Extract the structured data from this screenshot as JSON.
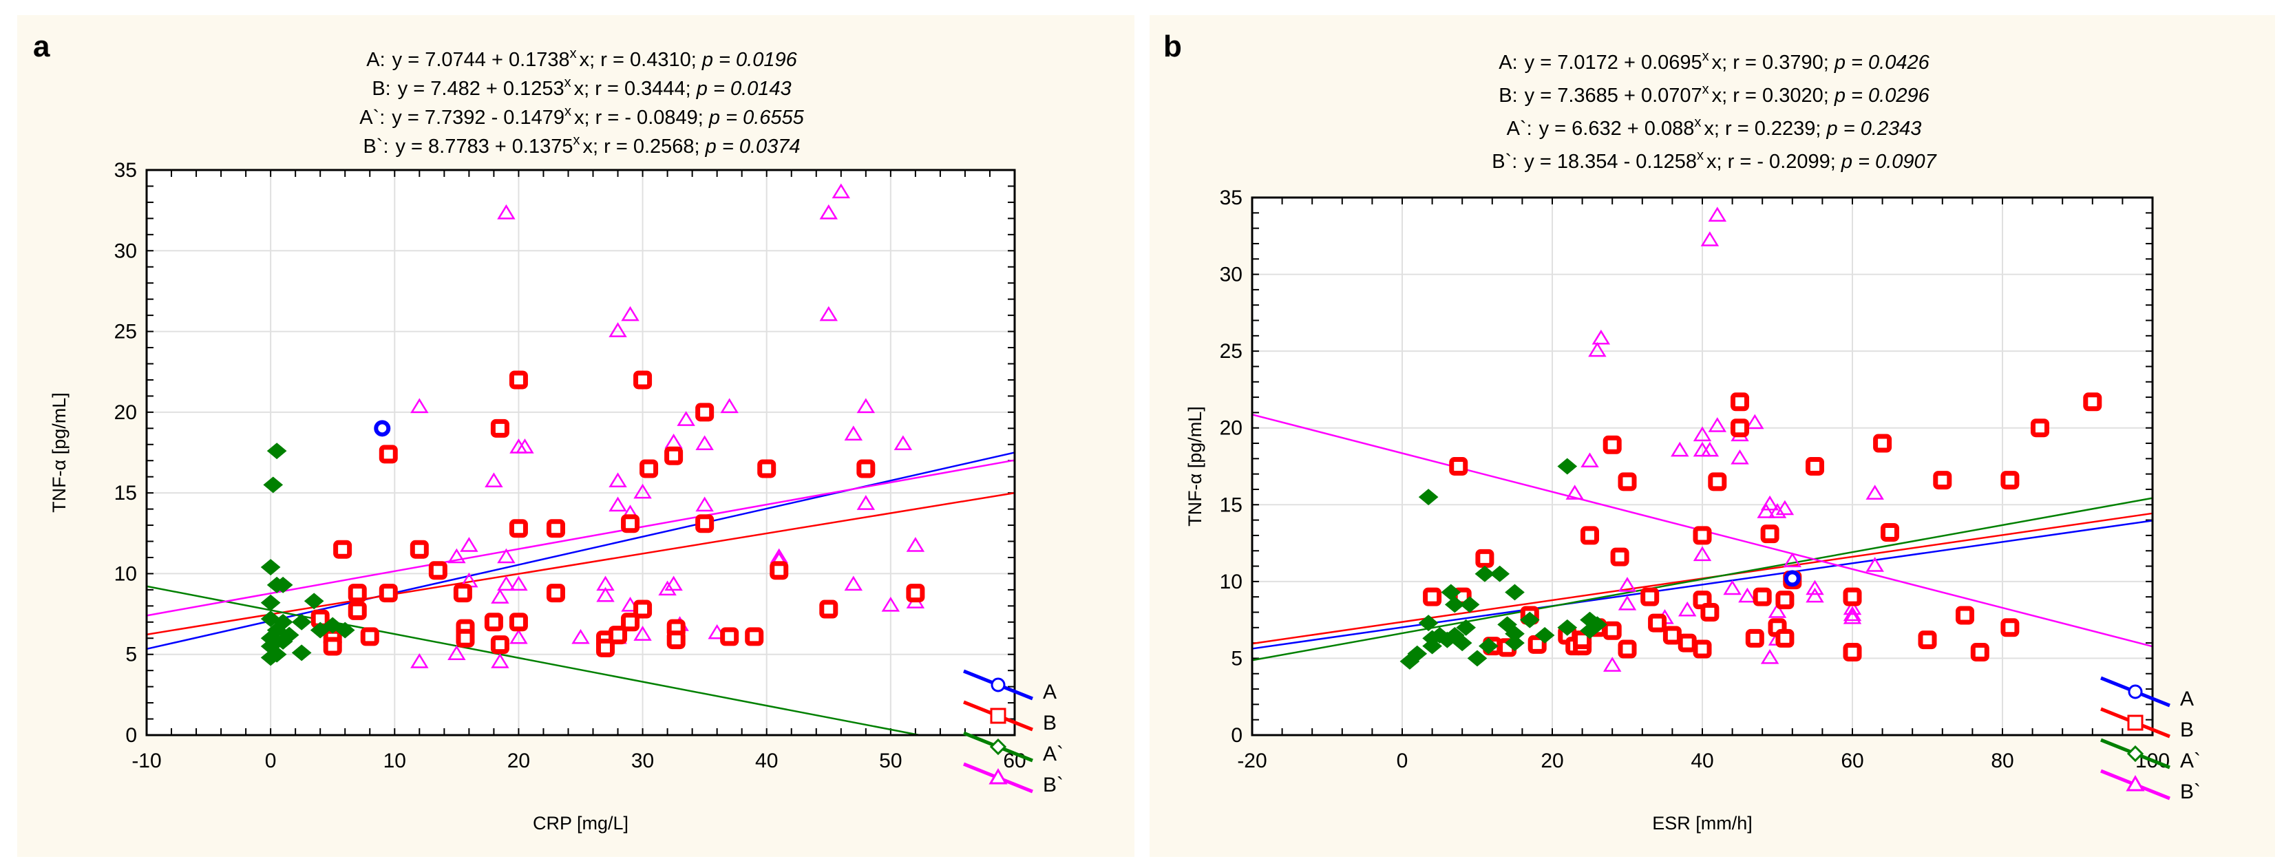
{
  "colors": {
    "A": "#0000ff",
    "B": "#ff0000",
    "A`": "#008000",
    "B`": "#ff00ff",
    "background": "#fdf9ee",
    "grid": "#e0e0e0"
  },
  "chart_data": [
    {
      "type": "scatter",
      "panel_label": "a",
      "xlabel": "CRP [mg/L]",
      "ylabel": "TNF-α [pg/mL]",
      "xlim": [
        -10,
        60
      ],
      "ylim": [
        0,
        35
      ],
      "xticks": [
        -10,
        0,
        10,
        20,
        30,
        40,
        50,
        60
      ],
      "yticks": [
        0,
        5,
        10,
        15,
        20,
        25,
        30,
        35
      ],
      "grid": true,
      "legend_position": "right-bottom",
      "equations": [
        {
          "series": "A",
          "label": "A:",
          "eq": "y = 7.0744 + 0.1738",
          "r": "r = 0.4310",
          "p": "p = 0.0196",
          "a": 7.0744,
          "b": 0.1738
        },
        {
          "series": "B",
          "label": "B:",
          "eq": "y = 7.482 + 0.1253",
          "r": "r = 0.3444",
          "p": "p = 0.0143",
          "a": 7.482,
          "b": 0.1253
        },
        {
          "series": "A`",
          "label": "A`:",
          "eq": "y = 7.7392 - 0.1479",
          "r": "r = - 0.0849",
          "p": "p = 0.6555",
          "a": 7.7392,
          "b": -0.1479
        },
        {
          "series": "B`",
          "label": "B`:",
          "eq": "y = 8.7783 + 0.1375",
          "r": "r = 0.2568",
          "p": "p = 0.0374",
          "a": 8.7783,
          "b": 0.1375
        }
      ],
      "series": [
        {
          "name": "A",
          "marker": "circle",
          "points": [
            [
              9,
              19
            ]
          ]
        },
        {
          "name": "A`",
          "marker": "diamond",
          "points": [
            [
              0.5,
              17.6
            ],
            [
              0.2,
              15.5
            ],
            [
              0,
              10.4
            ],
            [
              0.5,
              9.3
            ],
            [
              1,
              9.3
            ],
            [
              0,
              8.2
            ],
            [
              3.5,
              8.3
            ],
            [
              0,
              7.2
            ],
            [
              2.5,
              7
            ],
            [
              0.5,
              6.5
            ],
            [
              4,
              6.5
            ],
            [
              5,
              6.8
            ],
            [
              6,
              6.5
            ],
            [
              0,
              6
            ],
            [
              0.5,
              5.8
            ],
            [
              1,
              5.8
            ],
            [
              0,
              5.5
            ],
            [
              0.5,
              5
            ],
            [
              2.5,
              5.1
            ],
            [
              0,
              4.8
            ],
            [
              1.5,
              6.2
            ],
            [
              1,
              7
            ]
          ]
        },
        {
          "name": "B",
          "marker": "square",
          "points": [
            [
              5.8,
              11.5
            ],
            [
              9.5,
              17.4
            ],
            [
              20,
              22
            ],
            [
              30,
              22
            ],
            [
              35,
              20
            ],
            [
              48,
              16.5
            ],
            [
              20,
              12.8
            ],
            [
              23,
              12.8
            ],
            [
              12,
              11.5
            ],
            [
              13.5,
              10.2
            ],
            [
              15.5,
              8.8
            ],
            [
              23,
              8.8
            ],
            [
              7,
              8.8
            ],
            [
              9.5,
              8.8
            ],
            [
              30.5,
              16.5
            ],
            [
              32.5,
              17.3
            ],
            [
              40,
              16.5
            ],
            [
              41,
              10.2
            ],
            [
              29,
              13.1
            ],
            [
              35,
              13.1
            ],
            [
              18.5,
              19
            ],
            [
              4,
              7.2
            ],
            [
              5,
              6
            ],
            [
              5,
              5.5
            ],
            [
              7,
              7.7
            ],
            [
              8,
              6.1
            ],
            [
              15.7,
              6.6
            ],
            [
              15.7,
              6
            ],
            [
              18,
              7
            ],
            [
              20,
              7
            ],
            [
              18.5,
              5.6
            ],
            [
              27,
              5.9
            ],
            [
              27,
              5.4
            ],
            [
              28,
              6.2
            ],
            [
              29,
              7
            ],
            [
              30,
              7.8
            ],
            [
              32.7,
              6.6
            ],
            [
              32.7,
              5.9
            ],
            [
              37,
              6.1
            ],
            [
              39,
              6.1
            ],
            [
              45,
              7.8
            ],
            [
              52,
              8.8
            ]
          ]
        },
        {
          "name": "B`",
          "marker": "triangle",
          "points": [
            [
              19,
              32.3
            ],
            [
              46,
              33.6
            ],
            [
              45,
              32.3
            ],
            [
              28,
              25
            ],
            [
              29,
              26
            ],
            [
              45,
              26
            ],
            [
              12,
              20.3
            ],
            [
              20,
              17.8
            ],
            [
              20.5,
              17.8
            ],
            [
              18,
              15.7
            ],
            [
              28,
              15.7
            ],
            [
              28,
              14.2
            ],
            [
              29,
              13.7
            ],
            [
              30,
              15
            ],
            [
              32.5,
              18.1
            ],
            [
              33.5,
              19.5
            ],
            [
              35,
              18
            ],
            [
              35,
              14.2
            ],
            [
              37,
              20.3
            ],
            [
              47,
              18.6
            ],
            [
              48,
              20.3
            ],
            [
              48,
              14.3
            ],
            [
              51,
              18
            ],
            [
              16,
              11.7
            ],
            [
              15,
              11
            ],
            [
              16,
              9.5
            ],
            [
              19,
              9.3
            ],
            [
              20,
              9.3
            ],
            [
              18.5,
              8.5
            ],
            [
              19,
              11
            ],
            [
              27,
              8.6
            ],
            [
              27,
              9.3
            ],
            [
              29,
              8
            ],
            [
              32,
              9
            ],
            [
              32.5,
              9.3
            ],
            [
              41,
              11
            ],
            [
              41,
              10.8
            ],
            [
              47,
              9.3
            ],
            [
              52,
              11.7
            ],
            [
              52,
              8.2
            ],
            [
              50,
              8
            ],
            [
              12,
              4.5
            ],
            [
              15,
              5
            ],
            [
              18.5,
              4.5
            ],
            [
              25,
              6
            ],
            [
              30,
              6.2
            ],
            [
              33,
              6.8
            ],
            [
              36,
              6.3
            ],
            [
              28,
              6
            ],
            [
              20,
              6
            ]
          ]
        }
      ]
    },
    {
      "type": "scatter",
      "panel_label": "b",
      "xlabel": "ESR [mm/h]",
      "ylabel": "TNF-α [pg/mL]",
      "xlim": [
        -20,
        100
      ],
      "ylim": [
        0,
        35
      ],
      "xticks": [
        -20,
        0,
        20,
        40,
        60,
        80,
        100
      ],
      "yticks": [
        0,
        5,
        10,
        15,
        20,
        25,
        30,
        35
      ],
      "grid": true,
      "legend_position": "right-bottom",
      "equations": [
        {
          "series": "A",
          "label": "A:",
          "eq": "y = 7.0172 + 0.0695",
          "r": "r = 0.3790",
          "p": "p = 0.0426",
          "a": 7.0172,
          "b": 0.0695
        },
        {
          "series": "B",
          "label": "B:",
          "eq": "y = 7.3685 + 0.0707",
          "r": "r = 0.3020",
          "p": "p = 0.0296",
          "a": 7.3685,
          "b": 0.0707
        },
        {
          "series": "A`",
          "label": "A`:",
          "eq": "y = 6.632 + 0.088",
          "r": "r = 0.2239",
          "p": "p = 0.2343",
          "a": 6.632,
          "b": 0.088
        },
        {
          "series": "B`",
          "label": "B`:",
          "eq": "y = 18.354 - 0.1258",
          "r": "r = - 0.2099",
          "p": "p = 0.0907",
          "a": 18.354,
          "b": -0.1258
        }
      ],
      "series": [
        {
          "name": "A",
          "marker": "circle",
          "points": [
            [
              52,
              10.2
            ]
          ]
        },
        {
          "name": "A`",
          "marker": "diamond",
          "points": [
            [
              1,
              4.8
            ],
            [
              2,
              5.3
            ],
            [
              3.5,
              15.5
            ],
            [
              3.5,
              7.3
            ],
            [
              4,
              6.3
            ],
            [
              4,
              5.8
            ],
            [
              5,
              6.5
            ],
            [
              6,
              6.2
            ],
            [
              6.5,
              9.3
            ],
            [
              7,
              8.5
            ],
            [
              7,
              6.5
            ],
            [
              8,
              6
            ],
            [
              8.5,
              7
            ],
            [
              9,
              8.5
            ],
            [
              10,
              5
            ],
            [
              11,
              10.5
            ],
            [
              11.5,
              5.8
            ],
            [
              13,
              10.5
            ],
            [
              14,
              7.2
            ],
            [
              15,
              6.6
            ],
            [
              15,
              6
            ],
            [
              15,
              9.3
            ],
            [
              17,
              7.5
            ],
            [
              19,
              6.5
            ],
            [
              22,
              17.5
            ],
            [
              22,
              7
            ],
            [
              25,
              7.5
            ],
            [
              25,
              6.8
            ],
            [
              26,
              7.2
            ]
          ]
        },
        {
          "name": "B",
          "marker": "square",
          "points": [
            [
              7.5,
              17.5
            ],
            [
              4,
              9
            ],
            [
              8,
              9
            ],
            [
              11,
              11.5
            ],
            [
              12,
              5.8
            ],
            [
              14,
              5.7
            ],
            [
              17,
              7.8
            ],
            [
              18,
              5.9
            ],
            [
              22,
              6.5
            ],
            [
              23,
              5.8
            ],
            [
              24,
              5.8
            ],
            [
              24,
              6.2
            ],
            [
              25,
              13
            ],
            [
              26,
              7
            ],
            [
              28,
              18.9
            ],
            [
              28,
              6.8
            ],
            [
              29,
              11.6
            ],
            [
              30,
              16.5
            ],
            [
              30,
              5.6
            ],
            [
              33,
              9
            ],
            [
              34,
              7.3
            ],
            [
              36,
              6.5
            ],
            [
              38,
              6
            ],
            [
              40,
              13
            ],
            [
              40,
              5.6
            ],
            [
              40,
              8.8
            ],
            [
              41,
              8
            ],
            [
              42,
              16.5
            ],
            [
              45,
              20
            ],
            [
              45,
              21.7
            ],
            [
              47,
              6.3
            ],
            [
              48,
              9
            ],
            [
              49,
              13.1
            ],
            [
              50,
              7
            ],
            [
              51,
              6.3
            ],
            [
              51,
              8.8
            ],
            [
              52,
              10.1
            ],
            [
              55,
              17.5
            ],
            [
              60,
              9
            ],
            [
              60,
              5.4
            ],
            [
              64,
              19
            ],
            [
              65,
              13.2
            ],
            [
              70,
              6.2
            ],
            [
              72,
              16.6
            ],
            [
              75,
              7.8
            ],
            [
              77,
              5.4
            ],
            [
              81,
              16.6
            ],
            [
              81,
              7
            ],
            [
              85,
              20
            ],
            [
              92,
              21.7
            ]
          ]
        },
        {
          "name": "B`",
          "marker": "triangle",
          "points": [
            [
              42,
              33.8
            ],
            [
              41,
              32.2
            ],
            [
              26,
              25
            ],
            [
              26.5,
              25.8
            ],
            [
              23,
              15.7
            ],
            [
              25,
              17.8
            ],
            [
              37,
              18.5
            ],
            [
              40,
              19.5
            ],
            [
              40,
              18.5
            ],
            [
              41,
              18.5
            ],
            [
              42,
              20.1
            ],
            [
              45,
              19.5
            ],
            [
              45,
              18
            ],
            [
              47,
              20.3
            ],
            [
              49,
              15
            ],
            [
              48.5,
              14.5
            ],
            [
              50,
              14.5
            ],
            [
              51,
              14.7
            ],
            [
              40,
              11.7
            ],
            [
              30,
              9.7
            ],
            [
              28,
              4.5
            ],
            [
              30,
              8.5
            ],
            [
              35,
              7.6
            ],
            [
              38,
              8.1
            ],
            [
              44,
              9.5
            ],
            [
              46,
              9
            ],
            [
              49,
              5
            ],
            [
              50,
              6.2
            ],
            [
              50,
              8
            ],
            [
              52,
              11.3
            ],
            [
              55,
              9
            ],
            [
              55,
              9.5
            ],
            [
              60,
              7.6
            ],
            [
              60,
              8.2
            ],
            [
              63,
              11
            ],
            [
              63,
              15.7
            ],
            [
              60,
              7.8
            ]
          ]
        }
      ]
    }
  ]
}
